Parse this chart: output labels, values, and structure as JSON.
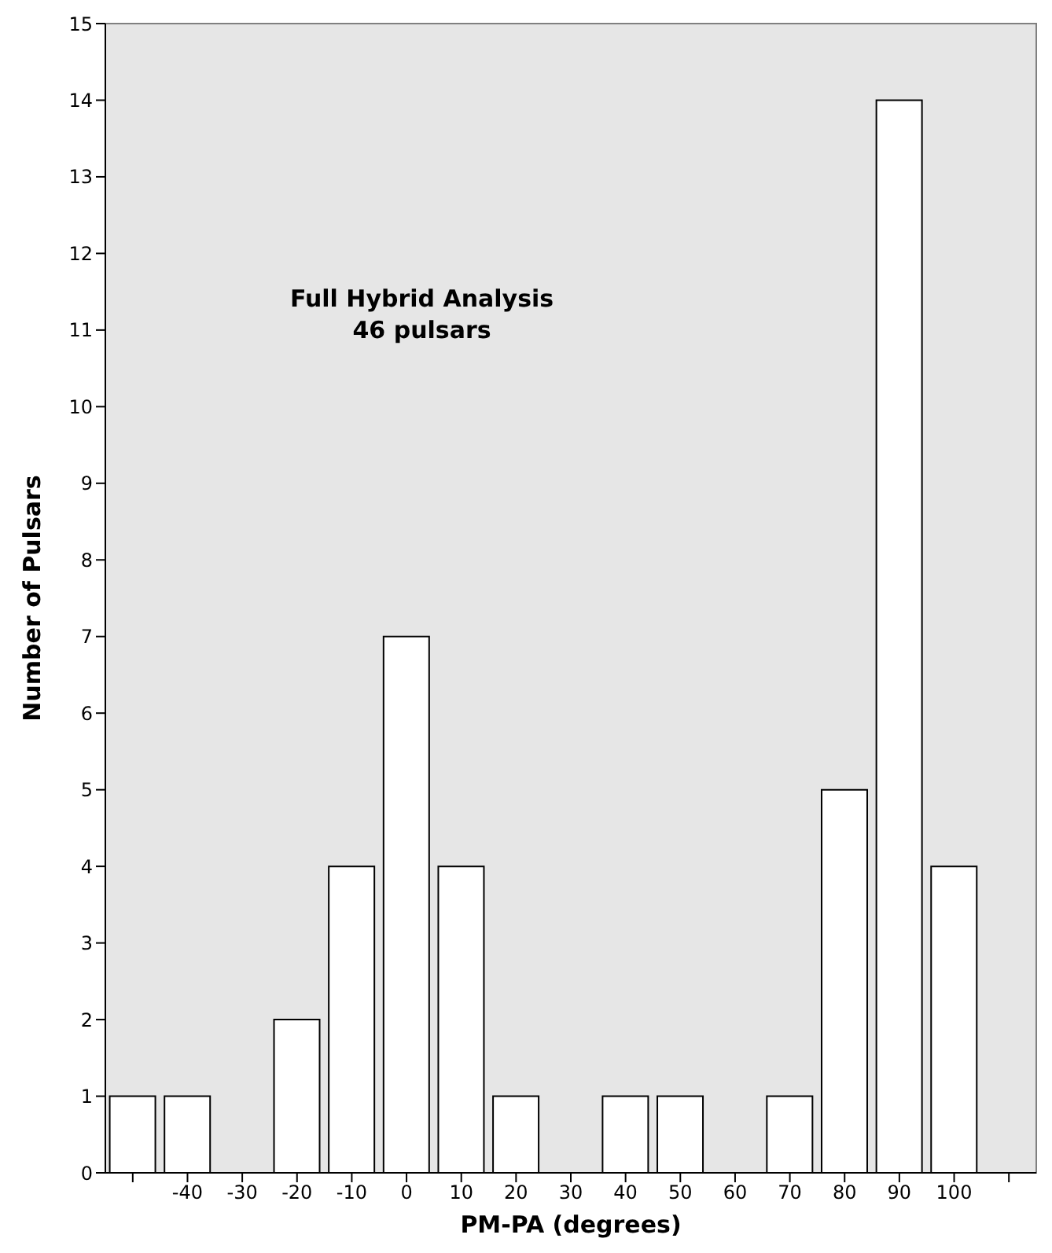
{
  "chart_data": {
    "type": "bar",
    "xlabel": "PM-PA (degrees)",
    "ylabel": "Number of Pulsars",
    "annotations": [
      "Full Hybrid Analysis",
      "46 pulsars"
    ],
    "categories": [
      null,
      "-40",
      "-30",
      "-20",
      "-10",
      "0",
      "10",
      "20",
      "30",
      "40",
      "50",
      "60",
      "70",
      "80",
      "90",
      "100",
      null
    ],
    "values": [
      1,
      1,
      0,
      2,
      4,
      7,
      4,
      1,
      0,
      1,
      1,
      0,
      1,
      5,
      14,
      4,
      0
    ],
    "color": "#ffffff",
    "ylim": [
      0,
      15
    ],
    "yticks": [
      0,
      1,
      2,
      3,
      4,
      5,
      6,
      7,
      8,
      9,
      10,
      11,
      12,
      13,
      14,
      15
    ]
  }
}
